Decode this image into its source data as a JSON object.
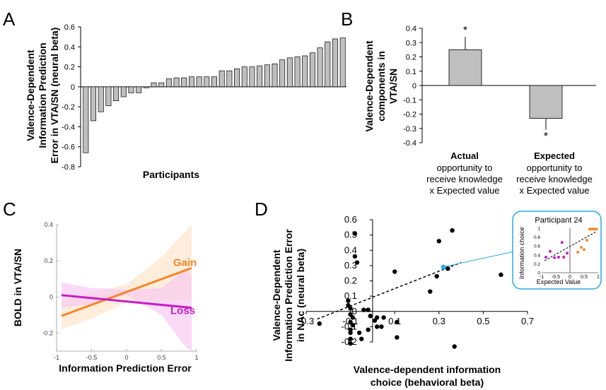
{
  "panels": {
    "A": {
      "letter": "A"
    },
    "B": {
      "letter": "B"
    },
    "C": {
      "letter": "C"
    },
    "D": {
      "letter": "D"
    }
  },
  "chart_data": [
    {
      "id": "A",
      "type": "bar",
      "xlabel": "Participants",
      "ylabel": [
        "Valence-Dependent",
        "Information Prediction",
        "Error in VTA/SN (neural beta)"
      ],
      "ylim": [
        -0.8,
        0.6
      ],
      "yticks": [
        "-0.8",
        "-0.6",
        "-0.4",
        "-0.2",
        "0",
        "0.2",
        "0.4",
        "0.6"
      ],
      "bar_color": "#bfbfbf",
      "values": [
        -0.66,
        -0.34,
        -0.25,
        -0.19,
        -0.14,
        -0.1,
        -0.06,
        -0.06,
        -0.01,
        0.04,
        0.04,
        0.08,
        0.09,
        0.09,
        0.1,
        0.1,
        0.1,
        0.1,
        0.16,
        0.16,
        0.18,
        0.2,
        0.2,
        0.21,
        0.22,
        0.23,
        0.27,
        0.29,
        0.3,
        0.31,
        0.34,
        0.39,
        0.45,
        0.48,
        0.49
      ]
    },
    {
      "id": "B",
      "type": "bar",
      "ylabel": [
        "Valence-Dependent",
        "components in",
        "VTA/SN"
      ],
      "ylim": [
        -0.4,
        0.4
      ],
      "yticks": [
        "-0.4",
        "-0.3",
        "-0.2",
        "-0.1",
        "0",
        "0.1",
        "0.2",
        "0.3",
        "0.4"
      ],
      "categories": [
        {
          "bold": "Actual",
          "lines": [
            "opportunity to",
            "receive knowledge",
            "x Expected value"
          ]
        },
        {
          "bold": "Expected",
          "lines": [
            "opportunity to",
            "receive knowledge",
            "x Expected value"
          ]
        }
      ],
      "values": [
        0.25,
        -0.23
      ],
      "errors": [
        0.09,
        0.08
      ],
      "significance": [
        "*",
        "*"
      ],
      "bar_color": "#bfbfbf"
    },
    {
      "id": "C",
      "type": "line",
      "xlabel": "Information Prediction Error",
      "ylabel": "BOLD in VTA/SN",
      "xlim": [
        -1,
        1
      ],
      "ylim": [
        -0.3,
        0.4
      ],
      "xticks": [
        "-1",
        "-0.5",
        "0",
        "0.5",
        "1"
      ],
      "yticks": [
        "-0.2",
        "0",
        "0.2",
        "0.4"
      ],
      "series": [
        {
          "name": "Gain",
          "color": "#f5872a",
          "band_color": "#fde3c8",
          "x": [
            -0.93,
            0.93
          ],
          "y": [
            -0.105,
            0.16
          ],
          "band_upper": [
            [
              -0.93,
              -0.02
            ],
            [
              -0.5,
              0.02
            ],
            [
              0,
              0.07
            ],
            [
              0.5,
              0.22
            ],
            [
              0.93,
              0.4
            ]
          ],
          "band_lower": [
            [
              -0.93,
              -0.18
            ],
            [
              -0.5,
              -0.12
            ],
            [
              0,
              -0.03
            ],
            [
              0.5,
              -0.02
            ],
            [
              0.93,
              -0.02
            ]
          ]
        },
        {
          "name": "Loss",
          "color": "#c51fc5",
          "band_color": "#f7c6f1",
          "x": [
            -0.93,
            0.93
          ],
          "y": [
            0.01,
            -0.06
          ],
          "band_upper": [
            [
              -0.93,
              0.08
            ],
            [
              -0.5,
              0.05
            ],
            [
              0,
              0.04
            ],
            [
              0.5,
              0.05
            ],
            [
              0.85,
              0.16
            ],
            [
              0.93,
              0.12
            ]
          ],
          "band_lower": [
            [
              -0.93,
              -0.06
            ],
            [
              -0.5,
              -0.04
            ],
            [
              0,
              0.01
            ],
            [
              0.5,
              -0.1
            ],
            [
              0.85,
              -0.28
            ],
            [
              0.93,
              -0.3
            ]
          ]
        }
      ]
    },
    {
      "id": "D",
      "type": "scatter",
      "xlabel": [
        "Valence-dependent information",
        "choice (behavioral beta)"
      ],
      "ylabel": [
        "Valence-Dependent",
        "Information Prediction Error",
        "in NAc (neural beta)"
      ],
      "xlim": [
        -0.3,
        0.7
      ],
      "ylim": [
        -0.2,
        0.6
      ],
      "xticks": [
        "-0.3",
        "-0.1",
        "0.1",
        "0.3",
        "0.5",
        "0.7"
      ],
      "yticks": [
        "-0.2",
        "-0.1",
        "0",
        "0.1",
        "0.2",
        "0.3",
        "0.4",
        "0.5",
        "0.6"
      ],
      "highlight": {
        "x": 0.32,
        "y": 0.29,
        "color": "#29abe2"
      },
      "points": [
        [
          -0.24,
          -0.08
        ],
        [
          -0.08,
          0.51
        ],
        [
          -0.08,
          0.36
        ],
        [
          -0.07,
          0.32
        ],
        [
          0.1,
          0.26
        ],
        [
          0.3,
          0.46
        ],
        [
          0.36,
          0.53
        ],
        [
          0.58,
          0.24
        ],
        [
          0.29,
          0.23
        ],
        [
          0.34,
          0.28
        ],
        [
          0.26,
          0.13
        ],
        [
          0.37,
          -0.23
        ],
        [
          -0.11,
          0.07
        ],
        [
          -0.11,
          0.04
        ],
        [
          -0.1,
          0.02
        ],
        [
          -0.1,
          -0.02
        ],
        [
          -0.09,
          -0.04
        ],
        [
          -0.1,
          -0.07
        ],
        [
          -0.09,
          -0.09
        ],
        [
          -0.1,
          -0.12
        ],
        [
          -0.1,
          -0.14
        ],
        [
          -0.1,
          -0.18
        ],
        [
          -0.1,
          -0.21
        ],
        [
          -0.04,
          0.01
        ],
        [
          -0.02,
          0.01
        ],
        [
          -0.01,
          -0.03
        ],
        [
          0.01,
          -0.06
        ],
        [
          0.02,
          -0.04
        ],
        [
          0.05,
          -0.04
        ],
        [
          0.04,
          -0.1
        ],
        [
          0.02,
          -0.1
        ],
        [
          -0.02,
          -0.12
        ],
        [
          -0.06,
          -0.14
        ],
        [
          -0.05,
          -0.18
        ],
        [
          0.11,
          -0.07
        ],
        [
          0.11,
          -0.17
        ]
      ],
      "trend": {
        "x": [
          -0.25,
          0.4
        ],
        "y": [
          -0.05,
          0.32
        ]
      },
      "inset": {
        "title": "Participant 24",
        "xlabel": "Expected Value",
        "ylabel": "Information choice",
        "xlim": [
          -1,
          1
        ],
        "ylim": [
          0,
          1
        ],
        "xticks": [
          "-1",
          "-0.5",
          "0",
          "0.5",
          "1"
        ],
        "yticks": [
          "0",
          "0.2",
          "0.4",
          "0.6",
          "0.8",
          "1"
        ],
        "border_color": "#29abe2",
        "loss_color": "#c51fc5",
        "gain_color": "#f5872a",
        "loss_points": [
          [
            -0.85,
            0.35
          ],
          [
            -0.7,
            0.48
          ],
          [
            -0.55,
            0.34
          ],
          [
            -0.4,
            0.35
          ],
          [
            -0.28,
            0.68
          ],
          [
            -0.22,
            0.35
          ],
          [
            -0.1,
            0.44
          ]
        ],
        "gain_points": [
          [
            0.28,
            0.46
          ],
          [
            0.4,
            0.57
          ],
          [
            0.5,
            0.52
          ],
          [
            0.6,
            0.73
          ],
          [
            0.7,
            0.98
          ],
          [
            0.78,
            0.98
          ],
          [
            0.86,
            0.98
          ],
          [
            0.94,
            0.98
          ]
        ],
        "trend": {
          "x": [
            -0.9,
            0.95
          ],
          "y": [
            0.27,
            0.93
          ]
        }
      }
    }
  ]
}
